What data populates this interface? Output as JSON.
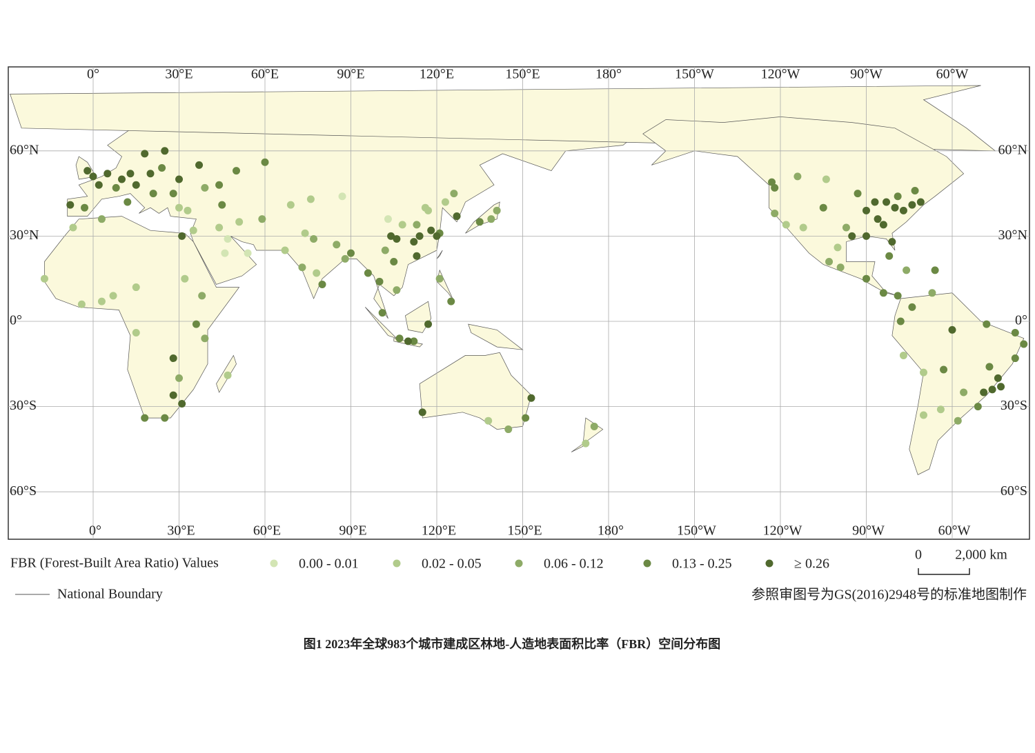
{
  "map": {
    "lon_ticks": [
      {
        "value": 0,
        "label": "0°"
      },
      {
        "value": 30,
        "label": "30°E"
      },
      {
        "value": 60,
        "label": "60°E"
      },
      {
        "value": 90,
        "label": "90°E"
      },
      {
        "value": 120,
        "label": "120°E"
      },
      {
        "value": 150,
        "label": "150°E"
      },
      {
        "value": 180,
        "label": "180°"
      },
      {
        "value": -150,
        "label": "150°W"
      },
      {
        "value": -120,
        "label": "120°W"
      },
      {
        "value": -90,
        "label": "90°W"
      },
      {
        "value": -60,
        "label": "60°W"
      }
    ],
    "lat_ticks": [
      {
        "value": 60,
        "label": "60°N"
      },
      {
        "value": 30,
        "label": "30°N"
      },
      {
        "value": 0,
        "label": "0°"
      },
      {
        "value": -30,
        "label": "30°S"
      },
      {
        "value": -60,
        "label": "60°S"
      }
    ],
    "legend": {
      "title": "FBR (Forest-Built Area Ratio) Values",
      "classes": [
        {
          "label": "0.00 - 0.01",
          "color": "#d3e5b4"
        },
        {
          "label": "0.02 - 0.05",
          "color": "#b1cb8b"
        },
        {
          "label": "0.06 - 0.12",
          "color": "#8eab67"
        },
        {
          "label": "0.13 - 0.25",
          "color": "#6b8944"
        },
        {
          "label": "≥ 0.26",
          "color": "#50692e"
        }
      ],
      "boundary": "National Boundary"
    },
    "scale_bar": {
      "start": "0",
      "end": "2,000 km"
    },
    "note": "参照审图号为GS(2016)2948号的标准地图制作",
    "caption": "图1 2023年全球983个城市建成区林地-人造地表面积比率（FBR）空间分布图",
    "points": [
      [
        0,
        51,
        4
      ],
      [
        2,
        48,
        4
      ],
      [
        5,
        52,
        4
      ],
      [
        10,
        50,
        4
      ],
      [
        13,
        52,
        4
      ],
      [
        8,
        47,
        3
      ],
      [
        15,
        48,
        4
      ],
      [
        20,
        52,
        4
      ],
      [
        24,
        54,
        3
      ],
      [
        30,
        50,
        4
      ],
      [
        37,
        55,
        4
      ],
      [
        -3,
        40,
        3
      ],
      [
        -8,
        41,
        4
      ],
      [
        12,
        42,
        3
      ],
      [
        -2,
        53,
        4
      ],
      [
        18,
        59,
        4
      ],
      [
        25,
        60,
        4
      ],
      [
        28,
        45,
        3
      ],
      [
        21,
        45,
        3
      ],
      [
        44,
        48,
        3
      ],
      [
        50,
        53,
        3
      ],
      [
        60,
        56,
        3
      ],
      [
        39,
        47,
        2
      ],
      [
        30,
        40,
        1
      ],
      [
        33,
        39,
        1
      ],
      [
        35,
        32,
        1
      ],
      [
        44,
        33,
        1
      ],
      [
        51,
        35,
        1
      ],
      [
        47,
        29,
        0
      ],
      [
        59,
        36,
        2
      ],
      [
        69,
        41,
        1
      ],
      [
        76,
        43,
        1
      ],
      [
        77,
        29,
        2
      ],
      [
        73,
        19,
        2
      ],
      [
        80,
        13,
        3
      ],
      [
        88,
        22,
        2
      ],
      [
        78,
        17,
        1
      ],
      [
        85,
        27,
        2
      ],
      [
        67,
        25,
        1
      ],
      [
        74,
        31,
        1
      ],
      [
        90,
        24,
        3
      ],
      [
        96,
        17,
        3
      ],
      [
        100,
        14,
        3
      ],
      [
        106,
        11,
        2
      ],
      [
        101,
        3,
        3
      ],
      [
        107,
        -6,
        3
      ],
      [
        112,
        -7,
        3
      ],
      [
        110,
        -7,
        4
      ],
      [
        117,
        -1,
        4
      ],
      [
        121,
        15,
        2
      ],
      [
        125,
        7,
        3
      ],
      [
        116,
        40,
        1
      ],
      [
        117,
        39,
        1
      ],
      [
        113,
        34,
        2
      ],
      [
        114,
        30,
        4
      ],
      [
        112,
        28,
        4
      ],
      [
        118,
        32,
        4
      ],
      [
        121,
        31,
        3
      ],
      [
        120,
        30,
        4
      ],
      [
        113,
        23,
        4
      ],
      [
        108,
        34,
        1
      ],
      [
        104,
        30,
        4
      ],
      [
        106,
        29,
        4
      ],
      [
        102,
        25,
        2
      ],
      [
        87,
        44,
        0
      ],
      [
        103,
        36,
        0
      ],
      [
        126,
        45,
        2
      ],
      [
        123,
        42,
        1
      ],
      [
        127,
        37,
        4
      ],
      [
        135,
        35,
        3
      ],
      [
        139,
        36,
        2
      ],
      [
        141,
        39,
        2
      ],
      [
        105,
        21,
        3
      ],
      [
        45,
        41,
        3
      ],
      [
        54,
        24,
        0
      ],
      [
        46,
        24,
        0
      ],
      [
        31,
        30,
        4
      ],
      [
        3,
        36,
        2
      ],
      [
        -7,
        33,
        1
      ],
      [
        -17,
        15,
        1
      ],
      [
        -4,
        6,
        1
      ],
      [
        3,
        7,
        1
      ],
      [
        7,
        9,
        1
      ],
      [
        15,
        12,
        1
      ],
      [
        32,
        15,
        1
      ],
      [
        38,
        9,
        2
      ],
      [
        36,
        -1,
        3
      ],
      [
        39,
        -6,
        2
      ],
      [
        28,
        -13,
        4
      ],
      [
        28,
        -26,
        4
      ],
      [
        31,
        -29,
        4
      ],
      [
        18,
        -34,
        3
      ],
      [
        25,
        -34,
        3
      ],
      [
        15,
        -4,
        1
      ],
      [
        30,
        -20,
        2
      ],
      [
        47,
        -19,
        1
      ],
      [
        115,
        -32,
        4
      ],
      [
        153,
        -27,
        4
      ],
      [
        151,
        -34,
        3
      ],
      [
        145,
        -38,
        2
      ],
      [
        138,
        -35,
        1
      ],
      [
        175,
        -37,
        2
      ],
      [
        172,
        -43,
        1
      ],
      [
        -74,
        41,
        4
      ],
      [
        -77,
        39,
        4
      ],
      [
        -71,
        42,
        4
      ],
      [
        -80,
        40,
        4
      ],
      [
        -84,
        34,
        4
      ],
      [
        -81,
        28,
        4
      ],
      [
        -90,
        30,
        4
      ],
      [
        -95,
        30,
        4
      ],
      [
        -87,
        42,
        4
      ],
      [
        -83,
        42,
        4
      ],
      [
        -93,
        45,
        3
      ],
      [
        -90,
        39,
        4
      ],
      [
        -86,
        36,
        4
      ],
      [
        -97,
        33,
        2
      ],
      [
        -105,
        40,
        3
      ],
      [
        -112,
        33,
        1
      ],
      [
        -118,
        34,
        1
      ],
      [
        -122,
        38,
        2
      ],
      [
        -122,
        47,
        3
      ],
      [
        -123,
        49,
        3
      ],
      [
        -114,
        51,
        2
      ],
      [
        -104,
        50,
        1
      ],
      [
        -79,
        44,
        3
      ],
      [
        -73,
        46,
        3
      ],
      [
        -99,
        19,
        2
      ],
      [
        -103,
        21,
        2
      ],
      [
        -100,
        26,
        1
      ],
      [
        -90,
        15,
        3
      ],
      [
        -84,
        10,
        3
      ],
      [
        -79,
        9,
        3
      ],
      [
        -74,
        5,
        3
      ],
      [
        -67,
        10,
        2
      ],
      [
        -78,
        0,
        3
      ],
      [
        -77,
        -12,
        1
      ],
      [
        -70,
        -18,
        1
      ],
      [
        -60,
        -3,
        4
      ],
      [
        -48,
        -1,
        3
      ],
      [
        -38,
        -4,
        3
      ],
      [
        -35,
        -8,
        3
      ],
      [
        -38,
        -13,
        3
      ],
      [
        -47,
        -16,
        3
      ],
      [
        -44,
        -20,
        4
      ],
      [
        -43,
        -23,
        4
      ],
      [
        -46,
        -24,
        4
      ],
      [
        -49,
        -25,
        4
      ],
      [
        -51,
        -30,
        3
      ],
      [
        -58,
        -35,
        2
      ],
      [
        -64,
        -31,
        1
      ],
      [
        -70,
        -33,
        1
      ],
      [
        -56,
        -25,
        2
      ],
      [
        -63,
        -17,
        3
      ],
      [
        -66,
        18,
        3
      ],
      [
        -76,
        18,
        2
      ],
      [
        -82,
        23,
        3
      ]
    ]
  }
}
